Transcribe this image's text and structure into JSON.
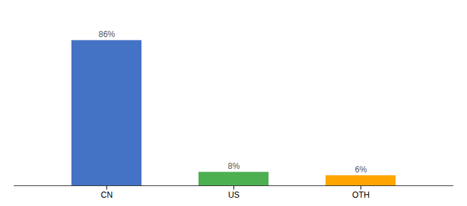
{
  "chart_data": {
    "type": "bar",
    "categories": [
      "CN",
      "US",
      "OTH"
    ],
    "values": [
      86,
      8,
      6
    ],
    "value_labels": [
      "86%",
      "8%",
      "6%"
    ],
    "colors": [
      "#4472c4",
      "#4caf50",
      "#ffa500"
    ],
    "ylim": [
      0,
      100
    ],
    "grid": false,
    "data_labels": true,
    "tick_labels": "x"
  }
}
